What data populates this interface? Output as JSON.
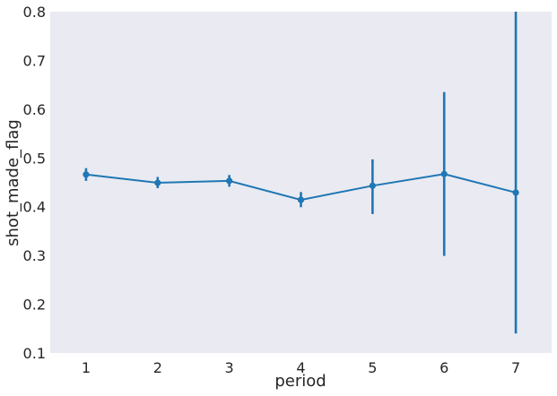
{
  "chart_data": {
    "type": "line",
    "xlabel": "period",
    "ylabel": "shot_made_flag",
    "categories": [
      "1",
      "2",
      "3",
      "4",
      "5",
      "6",
      "7"
    ],
    "yticks": [
      "0.1",
      "0.2",
      "0.3",
      "0.4",
      "0.5",
      "0.6",
      "0.7",
      "0.8"
    ],
    "ylim": [
      0.1,
      0.8
    ],
    "grid": false,
    "series": [
      {
        "values": [
          0.466,
          0.449,
          0.453,
          0.414,
          0.443,
          0.467,
          0.429
        ],
        "ci_low": [
          0.453,
          0.438,
          0.441,
          0.399,
          0.385,
          0.299,
          0.14
        ],
        "ci_high": [
          0.479,
          0.461,
          0.465,
          0.43,
          0.497,
          0.635,
          0.8
        ]
      }
    ],
    "colors": {
      "background": "#eaeaf2",
      "line": "#1f77b4"
    }
  }
}
